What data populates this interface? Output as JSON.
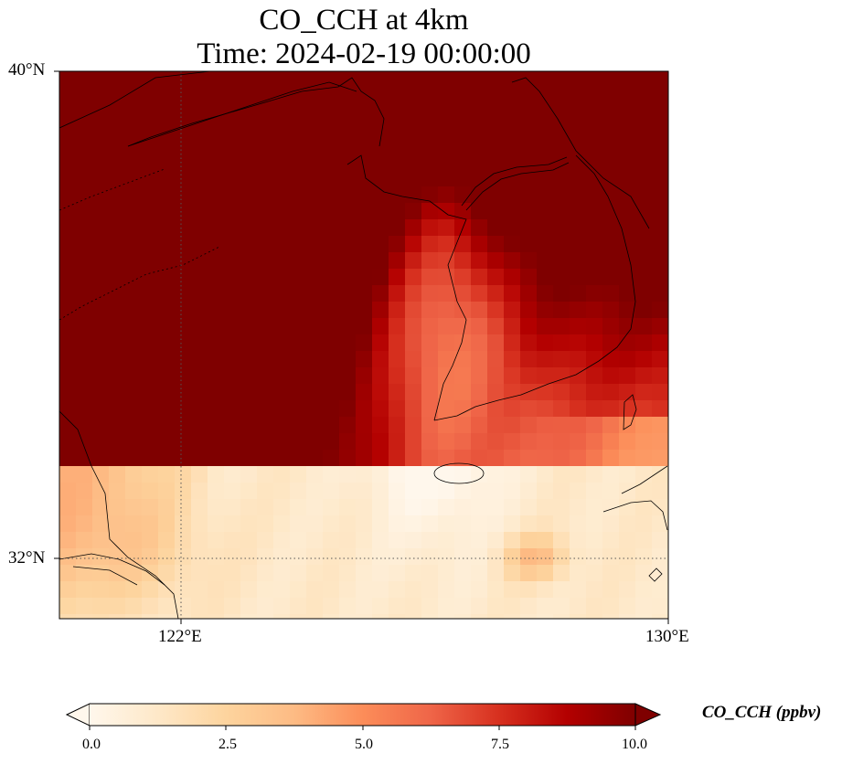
{
  "title": {
    "line1": "CO_CCH at 4km",
    "line2": "Time: 2024-02-19 00:00:00"
  },
  "map": {
    "lat_range": [
      31,
      40
    ],
    "lon_range": [
      120,
      130
    ],
    "lat_ticks": [
      {
        "value": 40,
        "label": "40°N"
      },
      {
        "value": 32,
        "label": "32°N"
      }
    ],
    "lon_ticks": [
      {
        "value": 122,
        "label": "122°E"
      },
      {
        "value": 130,
        "label": "130°E"
      }
    ],
    "gridlines": {
      "lat": [
        32
      ],
      "lon": [
        122
      ],
      "style": "dotted"
    },
    "coastlines": true,
    "field": "CO_CCH",
    "units": "ppbv",
    "colormap": "OrRd",
    "value_range": [
      0,
      10
    ]
  },
  "colorbar": {
    "label": "CO_CCH (ppbv)",
    "ticks": [
      "0.0",
      "2.5",
      "5.0",
      "7.5",
      "10.0"
    ],
    "min": 0,
    "max": 10,
    "extend": "both",
    "orientation": "horizontal",
    "stops": [
      "#fff7ec",
      "#fee8c8",
      "#fdd49e",
      "#fdbb84",
      "#fc8d59",
      "#ef6548",
      "#d7301f",
      "#b30000",
      "#7f0000"
    ]
  }
}
